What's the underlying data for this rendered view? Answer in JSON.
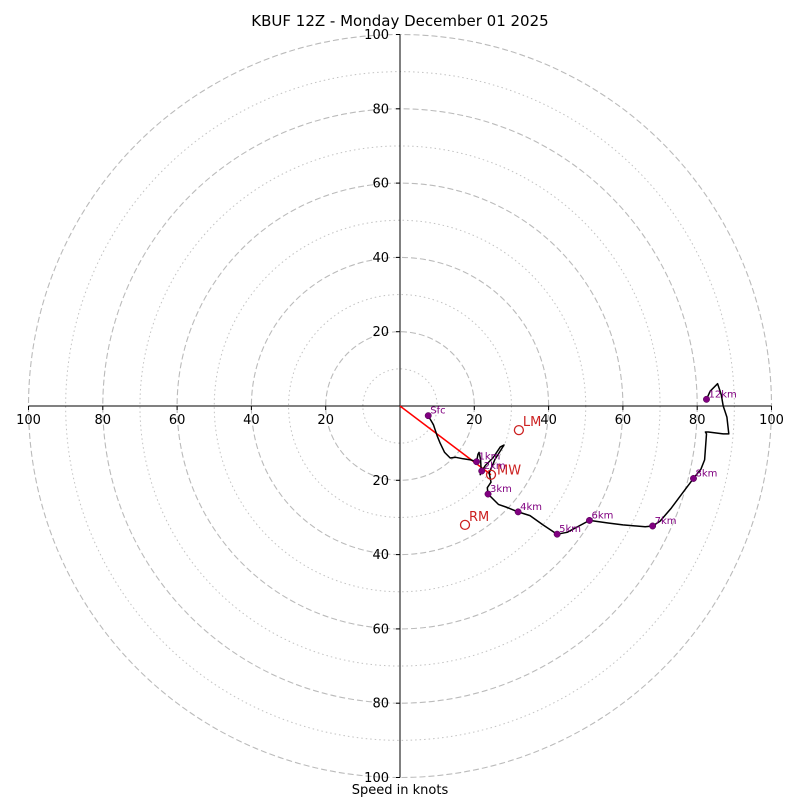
{
  "chart_data": {
    "type": "hodograph",
    "title": "KBUF 12Z - Monday December 01 2025",
    "xlabel": "Speed in knots",
    "range": [
      -100,
      100
    ],
    "major_rings": [
      20,
      40,
      60,
      80,
      100
    ],
    "minor_rings": [
      10,
      30,
      50,
      70,
      90
    ],
    "tick_labels": {
      "x_neg": [
        "100",
        "80",
        "60",
        "40",
        "20"
      ],
      "x_pos": [
        "20",
        "40",
        "60",
        "80",
        "100"
      ],
      "y_pos": [
        "20",
        "40",
        "60",
        "80",
        "100"
      ],
      "y_neg": [
        "20",
        "40",
        "60",
        "80",
        "100"
      ]
    },
    "profile": {
      "u": [
        7.6,
        9.0,
        10.0,
        10.8,
        12.0,
        13.5,
        15.0,
        17.0,
        19.0,
        20.6,
        21.0,
        21.3,
        21.7,
        21.8,
        22.0,
        21.6,
        22.0,
        23.0,
        25.0,
        27.0,
        28.0,
        25.5,
        24.0,
        24.5,
        23.5,
        23.7,
        26.5,
        28.5,
        31.8,
        35.0,
        38.5,
        42.3,
        45.0,
        51.0,
        56.0,
        60.0,
        66.0,
        68.0,
        70.0,
        73.0,
        76.0,
        79.0,
        81.0,
        82.0,
        82.5,
        82.2,
        83.0,
        87.0,
        88.5,
        88.0,
        87.5,
        87.0,
        86.5,
        86.0,
        85.5,
        83.5,
        82.5
      ],
      "v": [
        -2.6,
        -5.0,
        -8.0,
        -10.0,
        -12.5,
        -14.0,
        -13.8,
        -14.2,
        -14.5,
        -15.0,
        -13.0,
        -12.5,
        -14.5,
        -16.5,
        -17.0,
        -18.5,
        -17.5,
        -16.0,
        -14.0,
        -11.0,
        -10.5,
        -14.5,
        -18.0,
        -20.5,
        -22.0,
        -23.7,
        -26.5,
        -27.2,
        -28.5,
        -29.5,
        -32.0,
        -34.5,
        -34.0,
        -30.8,
        -31.5,
        -32.0,
        -32.5,
        -32.3,
        -31.0,
        -27.5,
        -23.5,
        -19.5,
        -17.0,
        -14.5,
        -7.5,
        -7.0,
        -7.0,
        -7.5,
        -7.5,
        -3.0,
        -1.5,
        0.0,
        3.0,
        4.5,
        6.0,
        4.0,
        1.8
      ]
    },
    "height_markers": [
      {
        "label": "Sfc",
        "u": 7.6,
        "v": -2.6
      },
      {
        "label": "1km",
        "u": 20.6,
        "v": -15.0
      },
      {
        "label": "2km",
        "u": 22.0,
        "v": -17.5
      },
      {
        "label": "3km",
        "u": 23.7,
        "v": -23.7
      },
      {
        "label": "4km",
        "u": 31.8,
        "v": -28.5
      },
      {
        "label": "5km",
        "u": 42.3,
        "v": -34.5
      },
      {
        "label": "6km",
        "u": 51.0,
        "v": -30.8
      },
      {
        "label": "7km",
        "u": 68.0,
        "v": -32.3
      },
      {
        "label": "8km",
        "u": 79.0,
        "v": -19.5
      },
      {
        "label": "12km",
        "u": 82.5,
        "v": 1.8
      }
    ],
    "storm_motion": [
      {
        "label": "LM",
        "u": 32.0,
        "v": -6.5
      },
      {
        "label": "MW",
        "u": 24.5,
        "v": -18.5
      },
      {
        "label": "RM",
        "u": 17.5,
        "v": -32.0
      }
    ],
    "bunkers_vector": {
      "from_u": 0,
      "from_v": 0,
      "to_u": 24.5,
      "to_v": -18.5
    },
    "colors": {
      "profile": "#000000",
      "marker": "#800080",
      "storm": "#cc2222",
      "vector": "#ff0000",
      "grid": "#bbbbbb",
      "axis": "#000000"
    }
  }
}
